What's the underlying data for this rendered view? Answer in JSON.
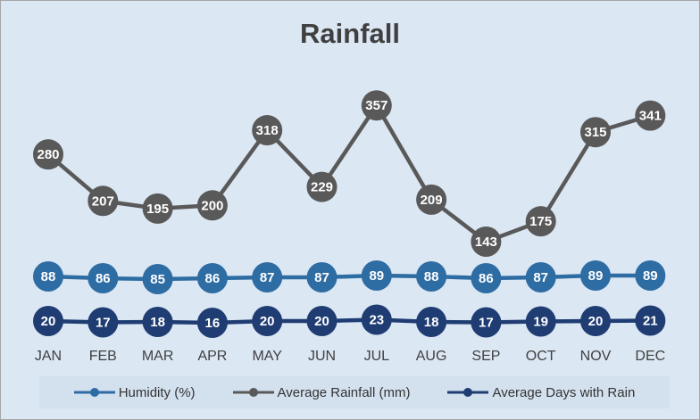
{
  "chart_data": {
    "type": "line",
    "title": "Rainfall",
    "categories": [
      "JAN",
      "FEB",
      "MAR",
      "APR",
      "MAY",
      "JUN",
      "JUL",
      "AUG",
      "SEP",
      "OCT",
      "NOV",
      "DEC"
    ],
    "series": [
      {
        "name": "Humidity (%)",
        "color": "#2e6ca4",
        "values": [
          88,
          86,
          85,
          86,
          87,
          87,
          89,
          88,
          86,
          87,
          89,
          89
        ]
      },
      {
        "name": "Average Rainfall (mm)",
        "color": "#595959",
        "values": [
          280,
          207,
          195,
          200,
          318,
          229,
          357,
          209,
          143,
          175,
          315,
          341
        ]
      },
      {
        "name": "Average Days with Rain",
        "color": "#1f3d73",
        "values": [
          20,
          17,
          18,
          16,
          20,
          20,
          23,
          18,
          17,
          19,
          20,
          21
        ]
      }
    ],
    "legend_position": "bottom",
    "grid": false
  }
}
